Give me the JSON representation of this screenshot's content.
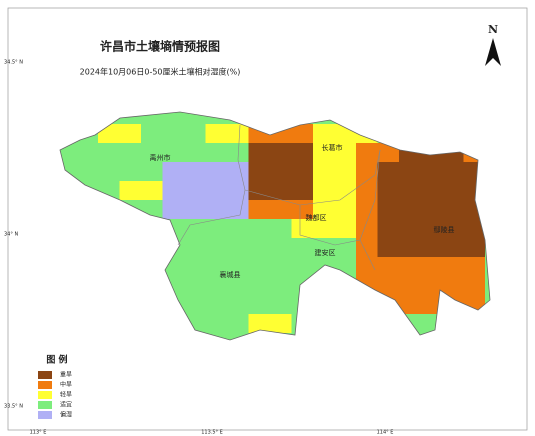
{
  "header": {
    "title": "许昌市土壤墒情预报图",
    "subtitle": "2024年10月06日0-50厘米土壤相对湿度(%)"
  },
  "north": "N",
  "legend": {
    "title": "图 例",
    "items": [
      {
        "label": "重旱",
        "color": "#8b4513"
      },
      {
        "label": "中旱",
        "color": "#f07b0f"
      },
      {
        "label": "轻旱",
        "color": "#ffff33"
      },
      {
        "label": "适宜",
        "color": "#7ded7d"
      },
      {
        "label": "偏湿",
        "color": "#b0b0f5"
      }
    ]
  },
  "places": [
    "禹州市",
    "长葛市",
    "魏都区",
    "建安区",
    "鄢陵县",
    "襄城县"
  ],
  "lat_labels": [
    "34.5° N",
    "34° N",
    "33.5° N"
  ],
  "lon_labels": [
    "113° E",
    "113.5° E",
    "114° E"
  ]
}
